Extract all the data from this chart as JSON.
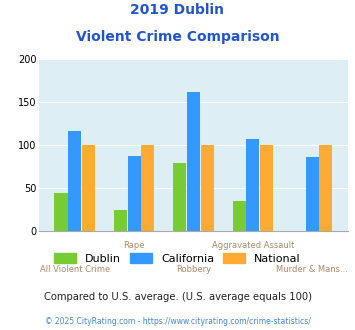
{
  "title_line1": "2019 Dublin",
  "title_line2": "Violent Crime Comparison",
  "categories": [
    "All Violent Crime",
    "Rape",
    "Robbery",
    "Aggravated Assault",
    "Murder & Mans..."
  ],
  "dublin": [
    44,
    25,
    79,
    35,
    0
  ],
  "california": [
    117,
    87,
    162,
    107,
    86
  ],
  "national": [
    100,
    100,
    100,
    100,
    100
  ],
  "color_dublin": "#77cc33",
  "color_california": "#3399ff",
  "color_national": "#ffaa33",
  "ylim": [
    0,
    200
  ],
  "yticks": [
    0,
    50,
    100,
    150,
    200
  ],
  "bg_color": "#ddeef5",
  "title_color": "#2255cc",
  "xlabel_color": "#aa8866",
  "footer_note": "Compared to U.S. average. (U.S. average equals 100)",
  "footer_copy": "© 2025 CityRating.com - https://www.cityrating.com/crime-statistics/",
  "footer_note_color": "#222222",
  "footer_copy_color": "#4488cc"
}
